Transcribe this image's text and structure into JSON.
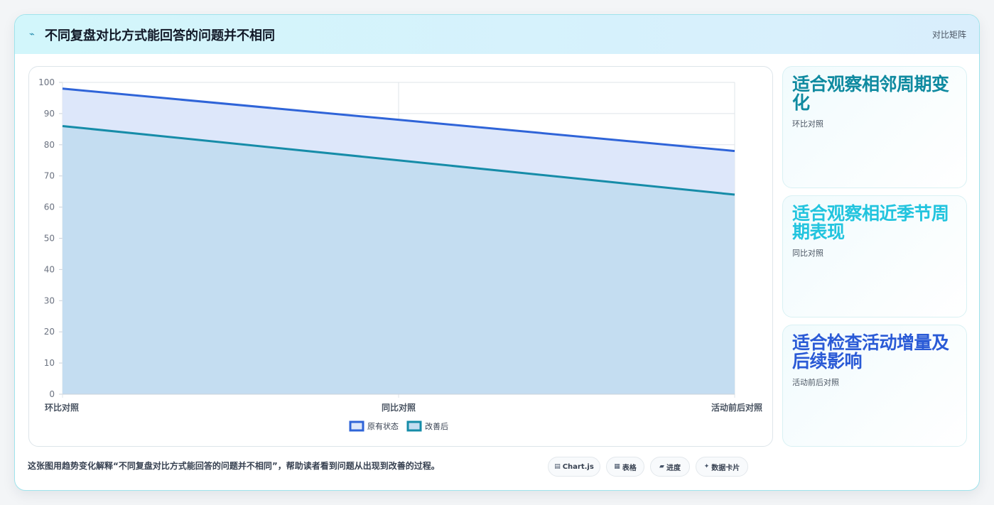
{
  "header": {
    "icon": "line-chart-icon",
    "title": "不同复盘对比方式能回答的问题并不相同",
    "badge": "对比矩阵"
  },
  "chart_data": {
    "type": "area",
    "categories": [
      "环比对照",
      "同比对照",
      "活动前后对照"
    ],
    "series": [
      {
        "name": "原有状态",
        "values": [
          98,
          88,
          78
        ],
        "color": "#2f64d8",
        "fill": "#dde7fa"
      },
      {
        "name": "改善后",
        "values": [
          86,
          75,
          64
        ],
        "color": "#168ca8",
        "fill": "#c4ddf1"
      }
    ],
    "ylim": [
      0,
      100
    ],
    "yticks": [
      0,
      10,
      20,
      30,
      40,
      50,
      60,
      70,
      80,
      90,
      100
    ],
    "grid": true,
    "legend": "bottom"
  },
  "stats": [
    {
      "value": "适合观察相邻周期变化",
      "label": "环比对照",
      "color": "#0f8aa0"
    },
    {
      "value": "适合观察相近季节周期表现",
      "label": "同比对照",
      "color": "#22c4de"
    },
    {
      "value": "适合检查活动增量及后续影响",
      "label": "活动前后对照",
      "color": "#2a5ad6"
    }
  ],
  "footer": {
    "caption": "这张图用趋势变化解释“不同复盘对比方式能回答的问题并不相同”，帮助读者看到问题从出现到改善的过程。",
    "tags": [
      {
        "icon": "chart-icon",
        "label": "Chart.js"
      },
      {
        "icon": "table-icon",
        "label": "表格"
      },
      {
        "icon": "progress-icon",
        "label": "进度"
      },
      {
        "icon": "data-card-icon",
        "label": "数据卡片"
      }
    ]
  }
}
